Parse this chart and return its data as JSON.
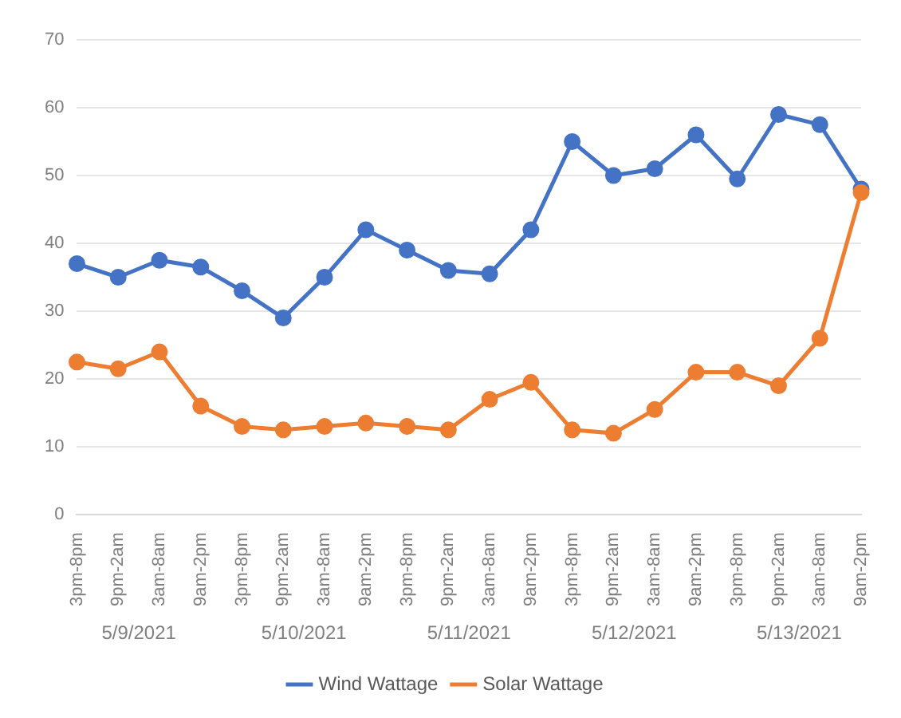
{
  "chart_data": {
    "type": "line",
    "categories": [
      "3pm-8pm",
      "9pm-2am",
      "3am-8am",
      "9am-2pm",
      "3pm-8pm",
      "9pm-2am",
      "3am-8am",
      "9am-2pm",
      "3pm-8pm",
      "9pm-2am",
      "3am-8am",
      "9am-2pm",
      "3pm-8pm",
      "9pm-2am",
      "3am-8am",
      "9am-2pm",
      "3pm-8pm",
      "9pm-2am",
      "3am-8am",
      "9am-2pm"
    ],
    "series": [
      {
        "name": "Wind Wattage",
        "color": "#4472c4",
        "values": [
          37,
          35,
          37.5,
          36.5,
          33,
          29,
          35,
          42,
          39,
          36,
          35.5,
          42,
          55,
          50,
          51,
          56,
          49.5,
          59,
          57.5,
          48
        ]
      },
      {
        "name": "Solar Wattage",
        "color": "#ed7d31",
        "values": [
          22.5,
          21.5,
          24,
          16,
          13,
          12.5,
          13,
          13.5,
          13,
          12.5,
          17,
          19.5,
          12.5,
          12,
          15.5,
          21,
          21,
          19,
          26,
          47.5
        ]
      }
    ],
    "annotations": [
      "5/9/2021",
      "5/10/2021",
      "5/11/2021",
      "5/12/2021",
      "5/13/2021"
    ],
    "ylim": [
      0,
      70
    ],
    "yticks": [
      0,
      10,
      20,
      30,
      40,
      50,
      60,
      70
    ],
    "grid": "y",
    "legend": "bottom",
    "marker": "circle",
    "line_style": "solid"
  }
}
